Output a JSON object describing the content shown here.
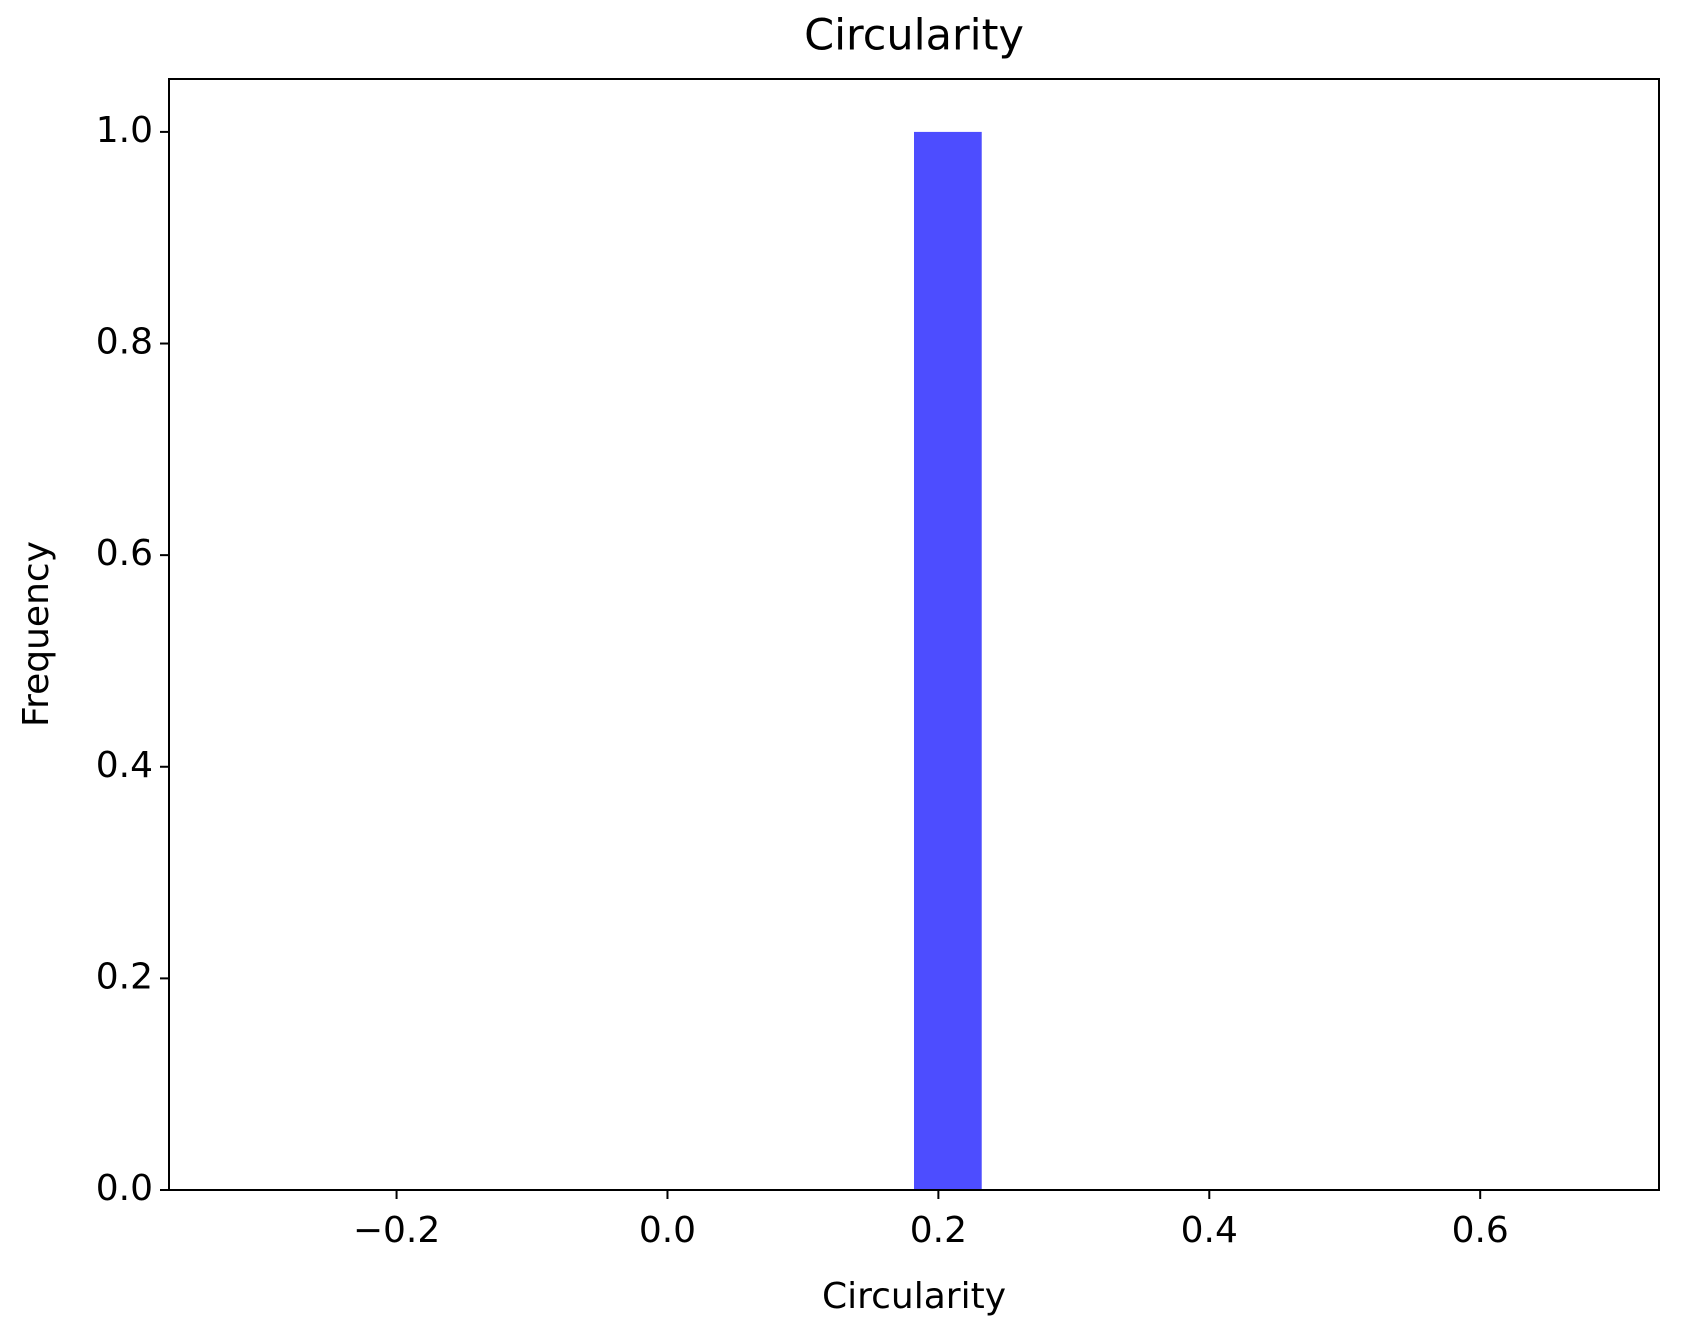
{
  "chart_data": {
    "type": "histogram",
    "title": "Circularity",
    "x_label": "Circularity",
    "y_label": "Frequency",
    "bins": [
      -0.318,
      -0.268,
      -0.218,
      -0.168,
      -0.118,
      -0.068,
      -0.018,
      0.032,
      0.082,
      0.132,
      0.182,
      0.232,
      0.282,
      0.332,
      0.382,
      0.432,
      0.482,
      0.532,
      0.582,
      0.632,
      0.682
    ],
    "values": [
      0,
      0,
      0,
      0,
      0,
      0,
      0,
      0,
      0,
      0,
      1,
      0,
      0,
      0,
      0,
      0,
      0,
      0,
      0,
      0
    ],
    "color": "#4d4dff",
    "xlim": [
      -0.368,
      0.732
    ],
    "xticks": [
      {
        "value": -0.2,
        "label": "−0.2"
      },
      {
        "value": 0,
        "label": "0.0"
      },
      0.2,
      0.4,
      0.6
    ],
    "ylim": [
      0,
      1.05
    ],
    "yticks": [
      {
        "value": 0,
        "label": "0.0"
      },
      0.2,
      0.4,
      0.6,
      0.8,
      {
        "value": 1,
        "label": "1.0"
      }
    ],
    "grid": false
  }
}
